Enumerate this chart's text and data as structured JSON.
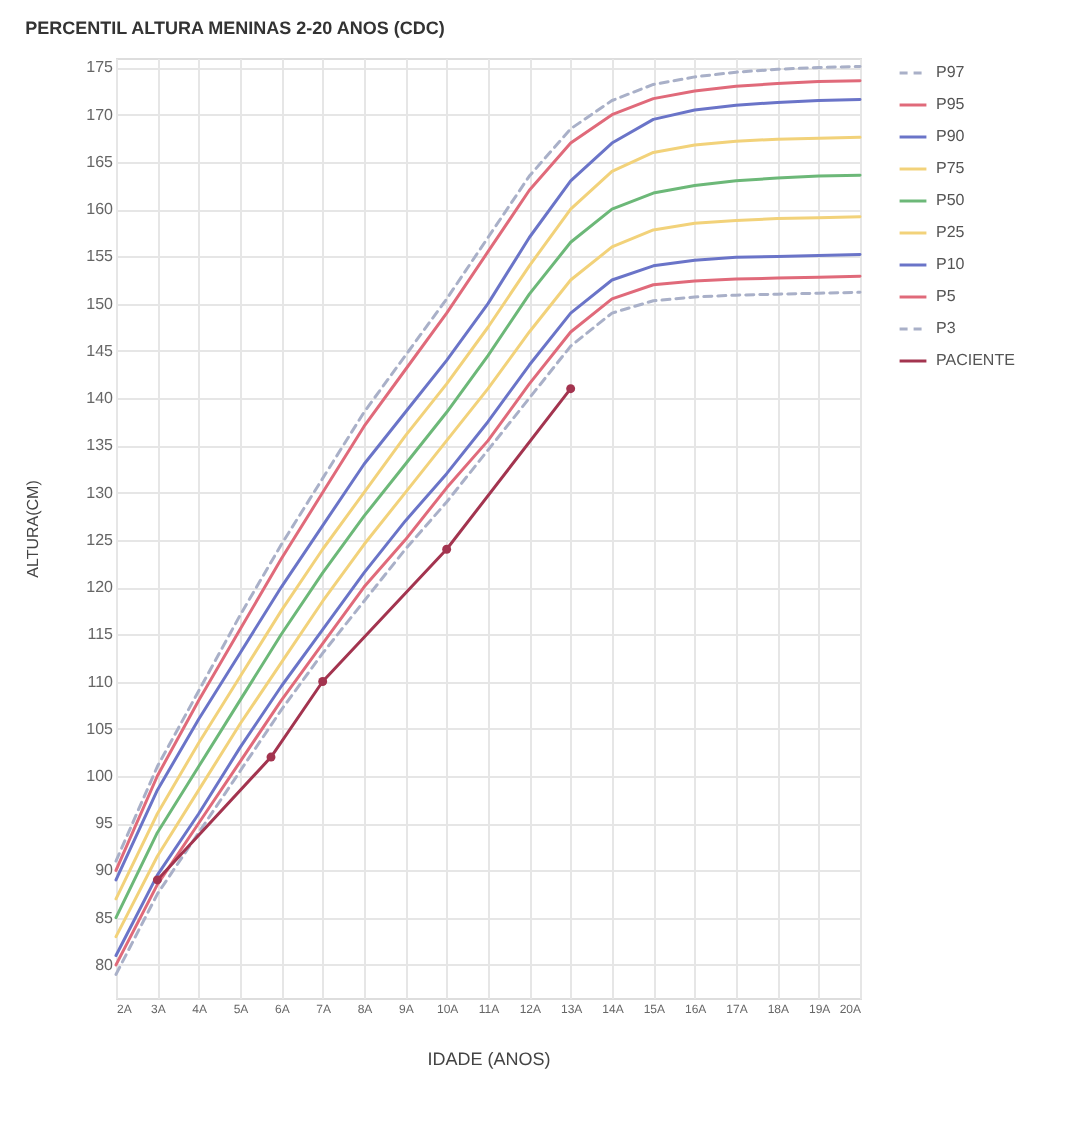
{
  "chart_data": {
    "type": "line",
    "title": "PERCENTIL ALTURA MENINAS 2-20 ANOS (CDC)",
    "xlabel": "IDADE (ANOS)",
    "ylabel": "ALTURA(CM)",
    "x": [
      2,
      3,
      4,
      5,
      6,
      7,
      8,
      9,
      10,
      11,
      12,
      13,
      14,
      15,
      16,
      17,
      18,
      19,
      20
    ],
    "xlim": [
      2,
      20
    ],
    "xticks": [
      {
        "value": 2,
        "label": "2A"
      },
      {
        "value": 3,
        "label": "3A"
      },
      {
        "value": 4,
        "label": "4A"
      },
      {
        "value": 5,
        "label": "5A"
      },
      {
        "value": 6,
        "label": "6A"
      },
      {
        "value": 7,
        "label": "7A"
      },
      {
        "value": 8,
        "label": "8A"
      },
      {
        "value": 9,
        "label": "9A"
      },
      {
        "value": 10,
        "label": "10A"
      },
      {
        "value": 11,
        "label": "11A"
      },
      {
        "value": 12,
        "label": "12A"
      },
      {
        "value": 13,
        "label": "13A"
      },
      {
        "value": 14,
        "label": "14A"
      },
      {
        "value": 15,
        "label": "15A"
      },
      {
        "value": 16,
        "label": "16A"
      },
      {
        "value": 17,
        "label": "17A"
      },
      {
        "value": 18,
        "label": "18A"
      },
      {
        "value": 19,
        "label": "19A"
      },
      {
        "value": 20,
        "label": "20A"
      }
    ],
    "ylim": [
      76.5,
      176
    ],
    "yticks": [
      80,
      85,
      90,
      95,
      100,
      105,
      110,
      115,
      120,
      125,
      130,
      135,
      140,
      145,
      150,
      155,
      160,
      165,
      170,
      175
    ],
    "grid": true,
    "legend": "right",
    "series": [
      {
        "name": "P97",
        "color": "#a9b0c8",
        "line_style": "dashed",
        "marker": "none",
        "values": [
          91,
          101,
          109,
          117,
          124.5,
          131.5,
          138.5,
          144.5,
          150.5,
          157,
          163.5,
          168.5,
          171.5,
          173.2,
          174,
          174.5,
          174.8,
          175,
          175.1
        ]
      },
      {
        "name": "P95",
        "color": "#e06a7a",
        "line_style": "solid",
        "marker": "none",
        "values": [
          90,
          100,
          108,
          115.5,
          123,
          130,
          137,
          143,
          149,
          155.5,
          162,
          167,
          170,
          171.7,
          172.5,
          173,
          173.3,
          173.5,
          173.6
        ]
      },
      {
        "name": "P90",
        "color": "#6a74c8",
        "line_style": "solid",
        "marker": "none",
        "values": [
          89,
          98.5,
          106,
          113,
          120,
          126.5,
          133,
          138.5,
          144,
          150,
          157,
          163,
          167,
          169.5,
          170.5,
          171,
          171.3,
          171.5,
          171.6
        ]
      },
      {
        "name": "P75",
        "color": "#f2d27a",
        "line_style": "solid",
        "marker": "none",
        "values": [
          87,
          96,
          103.5,
          110.5,
          117.5,
          124,
          130,
          136,
          141.5,
          147.5,
          154,
          160,
          164,
          166,
          166.8,
          167.2,
          167.4,
          167.5,
          167.6
        ]
      },
      {
        "name": "P50",
        "color": "#6cb878",
        "line_style": "solid",
        "marker": "none",
        "values": [
          85,
          94,
          101,
          108,
          115,
          121.5,
          127.5,
          133,
          138.5,
          144.5,
          151,
          156.5,
          160,
          161.7,
          162.5,
          163,
          163.3,
          163.5,
          163.6
        ]
      },
      {
        "name": "P25",
        "color": "#f2d27a",
        "line_style": "solid",
        "marker": "none",
        "values": [
          83,
          91.5,
          98.5,
          105.5,
          112,
          118.5,
          124.5,
          130,
          135.5,
          141,
          147,
          152.5,
          156,
          157.8,
          158.5,
          158.8,
          159,
          159.1,
          159.2
        ]
      },
      {
        "name": "P10",
        "color": "#6a74c8",
        "line_style": "solid",
        "marker": "none",
        "values": [
          81,
          89.5,
          96,
          103,
          109.5,
          115.5,
          121.5,
          127,
          132,
          137.5,
          143.5,
          149,
          152.5,
          154,
          154.6,
          154.9,
          155,
          155.1,
          155.2
        ]
      },
      {
        "name": "P5",
        "color": "#e06a7a",
        "line_style": "solid",
        "marker": "none",
        "values": [
          80,
          88.5,
          95,
          101.5,
          108,
          114,
          120,
          125,
          130.5,
          135.5,
          141.5,
          147,
          150.5,
          152,
          152.4,
          152.6,
          152.7,
          152.8,
          152.9
        ]
      },
      {
        "name": "P3",
        "color": "#a9b0c8",
        "line_style": "dashed",
        "marker": "none",
        "values": [
          79,
          87.5,
          94,
          100.5,
          107,
          113,
          118.5,
          124,
          129,
          134.5,
          140,
          145.5,
          149,
          150.3,
          150.7,
          150.9,
          151,
          151.1,
          151.2
        ]
      },
      {
        "name": "PACIENTE",
        "color": "#a3344f",
        "line_style": "solid",
        "marker": "circle",
        "x": [
          3,
          5.75,
          7,
          10,
          13
        ],
        "values": [
          89,
          102,
          110,
          124,
          141
        ]
      }
    ]
  }
}
